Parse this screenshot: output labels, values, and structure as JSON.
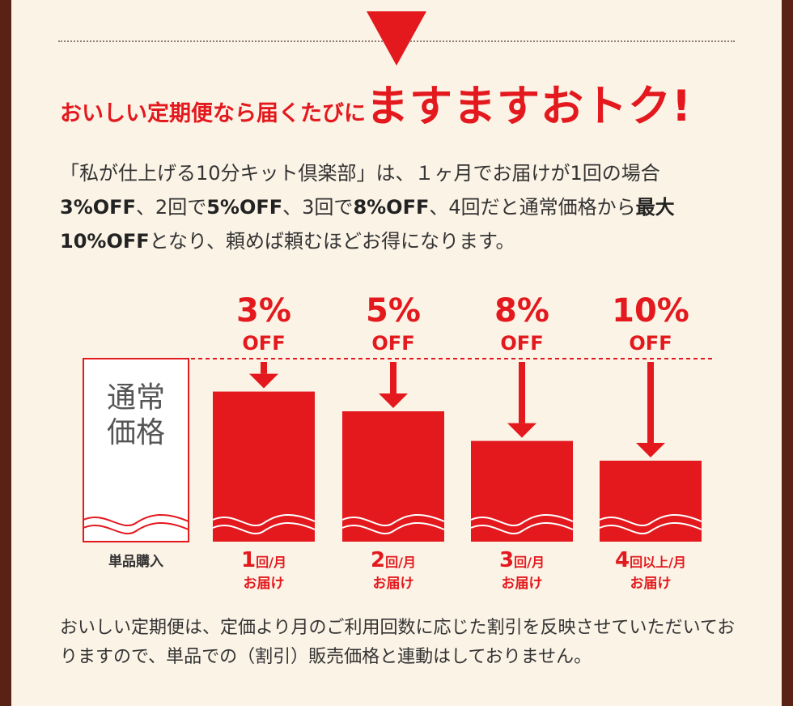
{
  "headline": {
    "lead": "おいしい定期便なら届くたびに",
    "emphasis": "ますますおトク!"
  },
  "intro": {
    "t1": "「私が仕上げる10分キット倶楽部」は、１ヶ月でお届けが1回の場合",
    "b1": "3%OFF",
    "t2": "、2回で",
    "b2": "5%OFF",
    "t3": "、3回で",
    "b3": "8%OFF",
    "t4": "、4回だと通常価格から",
    "b4": "最大10%OFF",
    "t5": "となり、頼めば頼むほどお得になります。"
  },
  "chart_data": {
    "type": "bar",
    "baseline": {
      "label_line1": "通常",
      "label_line2": "価格",
      "caption": "単品購入",
      "value": 100
    },
    "categories": [
      {
        "num": "1",
        "unit": "回/月",
        "sub": "お届け",
        "pct": "3%",
        "off": "OFF",
        "value": 97
      },
      {
        "num": "2",
        "unit": "回/月",
        "sub": "お届け",
        "pct": "5%",
        "off": "OFF",
        "value": 95
      },
      {
        "num": "3",
        "unit": "回/月",
        "sub": "お届け",
        "pct": "8%",
        "off": "OFF",
        "value": 92
      },
      {
        "num": "4",
        "unit": "回以上/月",
        "sub": "お届け",
        "pct": "10%",
        "off": "OFF",
        "value": 90
      }
    ],
    "colors": {
      "bar": "#e3191e",
      "baseline_border": "#e3191e",
      "text": "#333333"
    }
  },
  "note": "おいしい定期便は、定価より月のご利用回数に応じた割引を反映させていただいておりますので、単品での（割引）販売価格と連動はしておりません。"
}
